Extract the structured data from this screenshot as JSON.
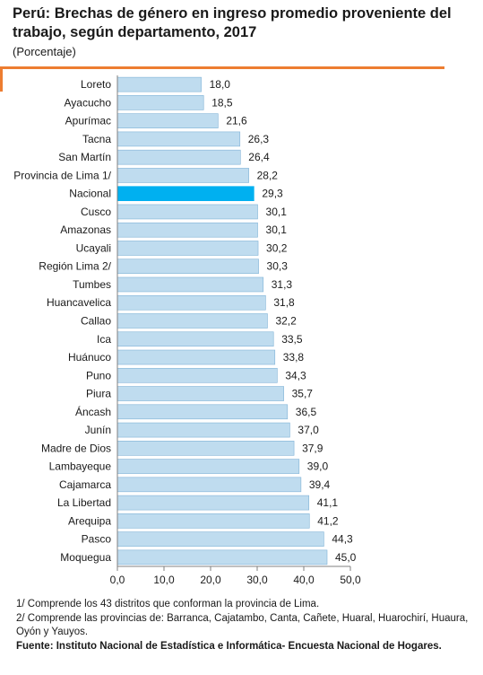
{
  "header": {
    "title": "Perú: Brechas de género en ingreso promedio proveniente del trabajo, según departamento, 2017",
    "subtitle": "(Porcentaje)"
  },
  "chart_data": {
    "type": "bar",
    "orientation": "horizontal",
    "categories": [
      "Loreto",
      "Ayacucho",
      "Apurímac",
      "Tacna",
      "San Martín",
      "Provincia de Lima 1/",
      "Nacional",
      "Cusco",
      "Amazonas",
      "Ucayali",
      "Región Lima 2/",
      "Tumbes",
      "Huancavelica",
      "Callao",
      "Ica",
      "Huánuco",
      "Puno",
      "Piura",
      "Áncash",
      "Junín",
      "Madre de Dios",
      "Lambayeque",
      "Cajamarca",
      "La Libertad",
      "Arequipa",
      "Pasco",
      "Moquegua"
    ],
    "values": [
      18.0,
      18.5,
      21.6,
      26.3,
      26.4,
      28.2,
      29.3,
      30.1,
      30.1,
      30.2,
      30.3,
      31.3,
      31.8,
      32.2,
      33.5,
      33.8,
      34.3,
      35.7,
      36.5,
      37.0,
      37.9,
      39.0,
      39.4,
      41.1,
      41.2,
      44.3,
      45.0
    ],
    "value_labels": [
      "18,0",
      "18,5",
      "21,6",
      "26,3",
      "26,4",
      "28,2",
      "29,3",
      "30,1",
      "30,1",
      "30,2",
      "30,3",
      "31,3",
      "31,8",
      "32,2",
      "33,5",
      "33,8",
      "34,3",
      "35,7",
      "36,5",
      "37,0",
      "37,9",
      "39,0",
      "39,4",
      "41,1",
      "41,2",
      "44,3",
      "45,0"
    ],
    "xlim": [
      0,
      50
    ],
    "x_ticks": [
      "0,0",
      "10,0",
      "20,0",
      "30,0",
      "40,0",
      "50,0"
    ],
    "highlight_category": "Nacional",
    "colors": {
      "bar": "#bfdcef",
      "bar_stroke": "#7fb2d6",
      "highlight": "#00b0f0",
      "axis": "#808080",
      "accent": "#ed7d31"
    },
    "grid": false,
    "legend": false
  },
  "footer": {
    "note1": "1/ Comprende los 43 distritos  que conforman la provincia de Lima.",
    "note2": "2/ Comprende las provincias de: Barranca, Cajatambo, Canta, Cañete, Huaral, Huarochirí, Huaura, Oyón y Yauyos.",
    "source": "Fuente: Instituto Nacional de Estadística e Informática- Encuesta Nacional de Hogares."
  }
}
